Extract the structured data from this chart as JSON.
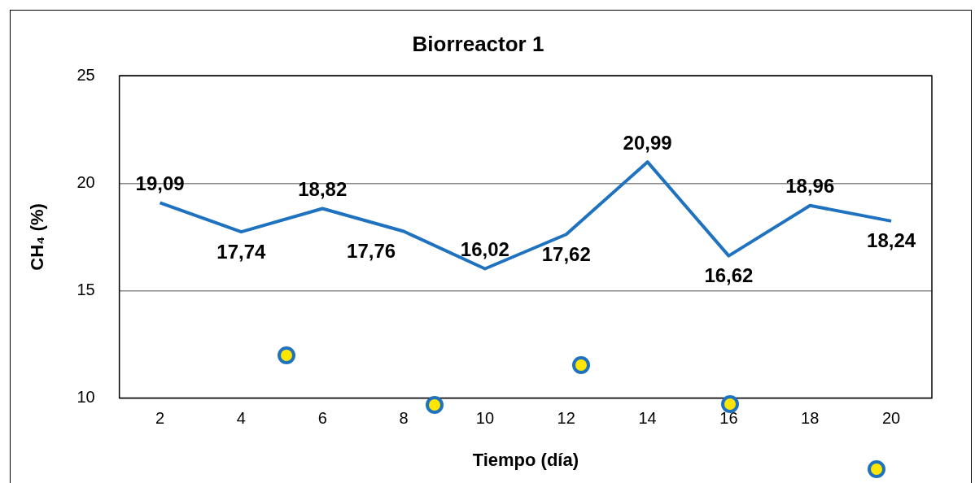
{
  "chart_data": {
    "type": "line",
    "title": "Biorreactor 1",
    "xlabel": "Tiempo (día)",
    "ylabel": "CH₄ (%)",
    "categories": [
      "2",
      "4",
      "6",
      "8",
      "10",
      "12",
      "14",
      "16",
      "18",
      "20"
    ],
    "series": [
      {
        "color": "#1f72c0",
        "values": [
          19.09,
          17.74,
          18.82,
          17.76,
          16.02,
          17.62,
          20.99,
          16.62,
          18.96,
          18.24
        ]
      }
    ],
    "value_labels": [
      "19,09",
      "17,74",
      "18,82",
      "17,76",
      "16,02",
      "17,62",
      "20,99",
      "16,62",
      "18,96",
      "18,24"
    ],
    "ylim": [
      10,
      25
    ],
    "yticks": [
      10,
      15,
      20,
      25
    ],
    "grid": "y",
    "legend": false,
    "marker": "none",
    "line_style": "solid"
  }
}
